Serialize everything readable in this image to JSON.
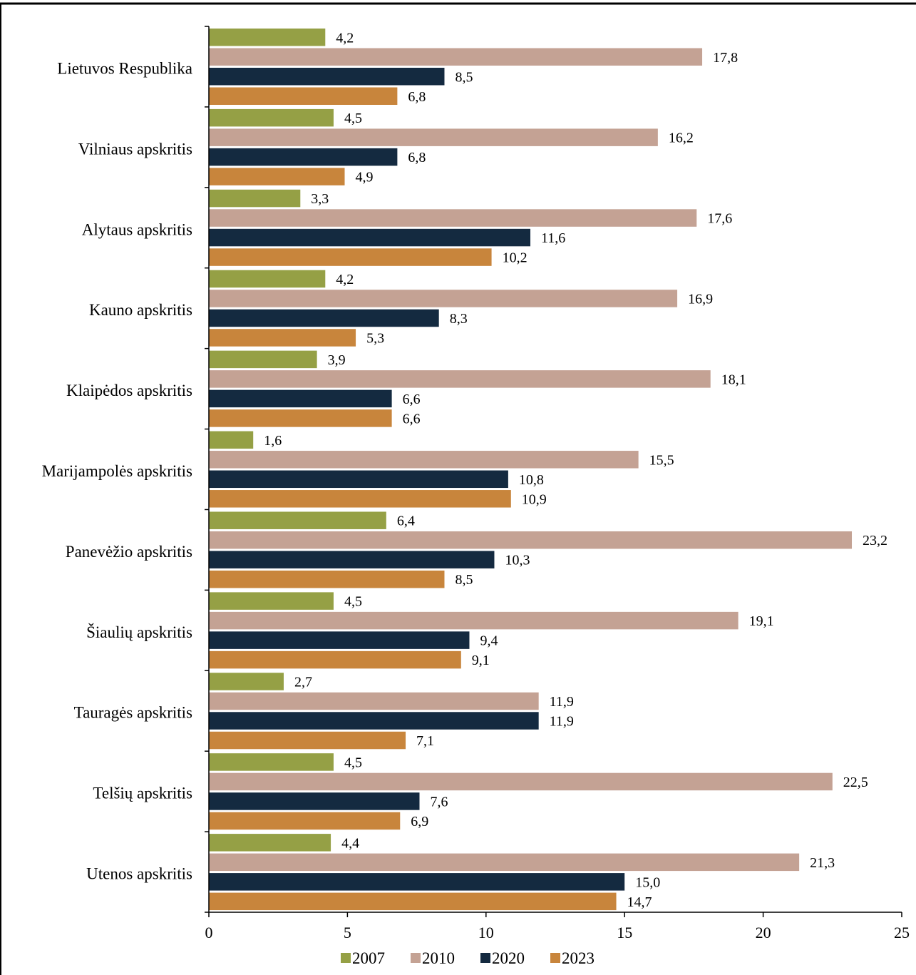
{
  "chart_data": {
    "type": "bar",
    "orientation": "horizontal",
    "categories": [
      "Lietuvos Respublika",
      "Vilniaus apskritis",
      "Alytaus apskritis",
      "Kauno apskritis",
      "Klaipėdos apskritis",
      "Marijampolės apskritis",
      "Panevėžio apskritis",
      "Šiaulių apskritis",
      "Tauragės apskritis",
      "Telšių apskritis",
      "Utenos apskritis"
    ],
    "series": [
      {
        "name": "2007",
        "color": "#95a045",
        "values": [
          4.2,
          4.5,
          3.3,
          4.2,
          3.9,
          1.6,
          6.4,
          4.5,
          2.7,
          4.5,
          4.4
        ],
        "labels": [
          "4,2",
          "4,5",
          "3,3",
          "4,2",
          "3,9",
          "1,6",
          "6,4",
          "4,5",
          "2,7",
          "4,5",
          "4,4"
        ]
      },
      {
        "name": "2010",
        "color": "#c4a294",
        "values": [
          17.8,
          16.2,
          17.6,
          16.9,
          18.1,
          15.5,
          23.2,
          19.1,
          11.9,
          22.5,
          21.3
        ],
        "labels": [
          "17,8",
          "16,2",
          "17,6",
          "16,9",
          "18,1",
          "15,5",
          "23,2",
          "19,1",
          "11,9",
          "22,5",
          "21,3"
        ]
      },
      {
        "name": "2020",
        "color": "#142a40",
        "values": [
          8.5,
          6.8,
          11.6,
          8.3,
          6.6,
          10.8,
          10.3,
          9.4,
          11.9,
          7.6,
          15.0
        ],
        "labels": [
          "8,5",
          "6,8",
          "11,6",
          "8,3",
          "6,6",
          "10,8",
          "10,3",
          "9,4",
          "11,9",
          "7,6",
          "15,0"
        ]
      },
      {
        "name": "2023",
        "color": "#c8853c",
        "values": [
          6.8,
          4.9,
          10.2,
          5.3,
          6.6,
          10.9,
          8.5,
          9.1,
          7.1,
          6.9,
          14.7
        ],
        "labels": [
          "6,8",
          "4,9",
          "10,2",
          "5,3",
          "6,6",
          "10,9",
          "8,5",
          "9,1",
          "7,1",
          "6,9",
          "14,7"
        ]
      }
    ],
    "xlim": [
      0,
      25
    ],
    "xticks": [
      0,
      5,
      10,
      15,
      20,
      25
    ],
    "xtick_labels": [
      "0",
      "5",
      "10",
      "15",
      "20",
      "25"
    ],
    "grid": false,
    "legend_position": "bottom",
    "title": "",
    "xlabel": "",
    "ylabel": ""
  }
}
